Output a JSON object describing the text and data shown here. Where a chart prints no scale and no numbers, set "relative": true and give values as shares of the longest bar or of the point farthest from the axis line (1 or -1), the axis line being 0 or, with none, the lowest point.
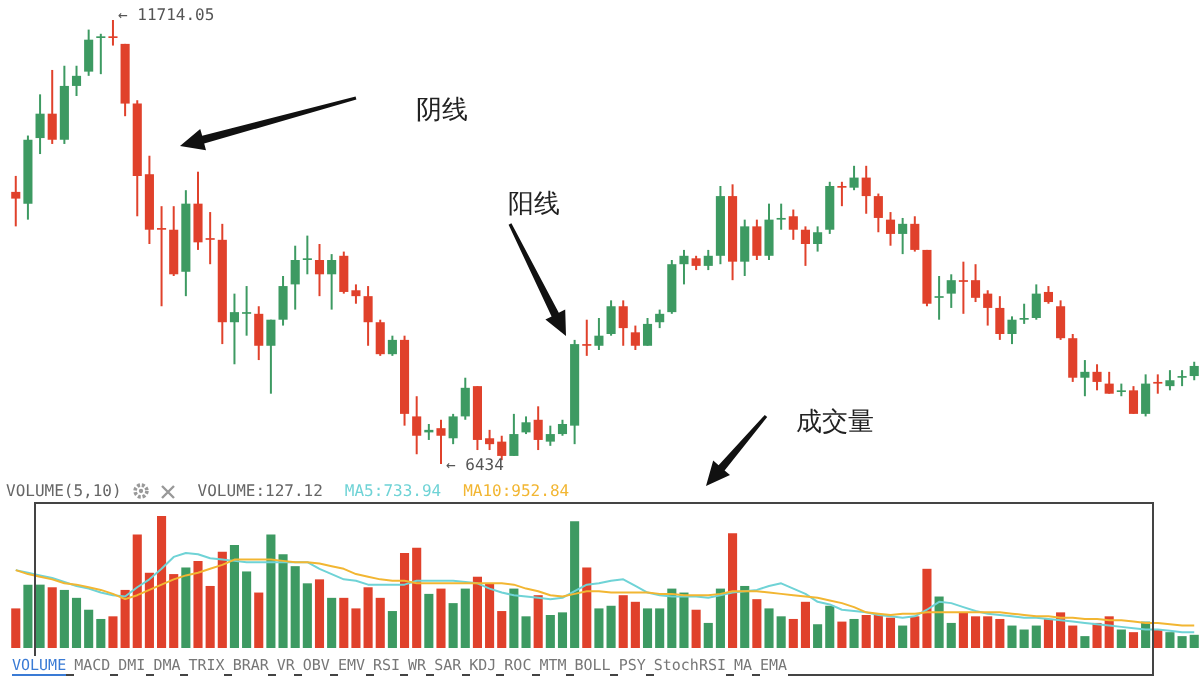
{
  "chart_data": [
    {
      "type": "candlestick",
      "tick_labels": false,
      "categories": [
        null,
        null,
        null,
        null,
        null,
        null,
        null,
        null,
        null,
        null,
        null,
        null,
        null,
        null,
        null,
        null,
        null,
        null,
        null,
        null,
        null,
        null,
        null,
        null,
        null,
        null,
        null,
        null,
        null,
        null,
        null,
        null,
        null,
        null,
        null,
        null,
        null,
        null,
        null,
        null,
        null,
        null,
        null,
        null,
        null,
        null,
        null,
        null,
        null,
        null,
        null,
        null,
        null,
        null,
        null,
        null,
        null,
        null,
        null,
        null,
        null,
        null,
        null,
        null,
        null,
        null,
        null,
        null,
        null,
        null,
        null,
        null,
        null,
        null,
        null,
        null,
        null,
        null,
        null,
        null,
        null,
        null,
        null,
        null,
        null,
        null,
        null,
        null,
        null,
        null,
        null,
        null,
        null,
        null,
        null,
        null,
        null,
        null
      ],
      "ohlc": [
        [
          9670,
          9860,
          9260,
          9590
        ],
        [
          9530,
          10340,
          9340,
          10290
        ],
        [
          10310,
          10830,
          10120,
          10600
        ],
        [
          10600,
          11120,
          10240,
          10290
        ],
        [
          10290,
          11170,
          10240,
          10930
        ],
        [
          10930,
          11170,
          10810,
          11050
        ],
        [
          11100,
          11600,
          11050,
          11480
        ],
        [
          11500,
          11550,
          11070,
          11520
        ],
        [
          11520,
          11714.05,
          11410,
          11500
        ],
        [
          11430,
          11430,
          10570,
          10720
        ],
        [
          10720,
          10760,
          9380,
          9860
        ],
        [
          9880,
          10100,
          9050,
          9220
        ],
        [
          9240,
          9500,
          8310,
          9220
        ],
        [
          9220,
          9500,
          8670,
          8690
        ],
        [
          8720,
          9690,
          8430,
          9530
        ],
        [
          9530,
          9910,
          8980,
          9070
        ],
        [
          9120,
          9430,
          8810,
          9100
        ],
        [
          9100,
          9290,
          7860,
          8120
        ],
        [
          8120,
          8460,
          7620,
          8240
        ],
        [
          8220,
          8550,
          7960,
          8240
        ],
        [
          8220,
          8310,
          7670,
          7840
        ],
        [
          7840,
          8150,
          7270,
          8150
        ],
        [
          8150,
          8670,
          8080,
          8550
        ],
        [
          8570,
          9030,
          8270,
          8860
        ],
        [
          8860,
          9150,
          8690,
          8880
        ],
        [
          8860,
          9050,
          8430,
          8690
        ],
        [
          8690,
          8930,
          8270,
          8860
        ],
        [
          8910,
          8960,
          8460,
          8480
        ],
        [
          8500,
          8570,
          8340,
          8430
        ],
        [
          8430,
          8550,
          7840,
          8120
        ],
        [
          8120,
          8150,
          7720,
          7740
        ],
        [
          7740,
          7960,
          7720,
          7910
        ],
        [
          7910,
          7960,
          6890,
          7030
        ],
        [
          7000,
          7240,
          6550,
          6770
        ],
        [
          6810,
          6910,
          6720,
          6840
        ],
        [
          6860,
          6960,
          6434,
          6770
        ],
        [
          6740,
          7030,
          6670,
          7000
        ],
        [
          7000,
          7460,
          6960,
          7340
        ],
        [
          7360,
          7360,
          6600,
          6720
        ],
        [
          6740,
          6840,
          6600,
          6670
        ],
        [
          6700,
          6770,
          6480,
          6530
        ],
        [
          6530,
          7030,
          6530,
          6790
        ],
        [
          6810,
          7000,
          6790,
          6930
        ],
        [
          6960,
          7120,
          6600,
          6720
        ],
        [
          6700,
          6890,
          6650,
          6790
        ],
        [
          6790,
          6960,
          6770,
          6910
        ],
        [
          6890,
          7910,
          6670,
          7860
        ],
        [
          7860,
          8150,
          7720,
          7840
        ],
        [
          7840,
          8170,
          7790,
          7960
        ],
        [
          7980,
          8380,
          7960,
          8310
        ],
        [
          8310,
          8380,
          7840,
          8050
        ],
        [
          8000,
          8080,
          7790,
          7840
        ],
        [
          7840,
          8170,
          7840,
          8100
        ],
        [
          8120,
          8270,
          8050,
          8220
        ],
        [
          8240,
          8860,
          8220,
          8810
        ],
        [
          8810,
          8980,
          8570,
          8910
        ],
        [
          8880,
          8910,
          8740,
          8790
        ],
        [
          8790,
          8980,
          8740,
          8910
        ],
        [
          8910,
          9740,
          8810,
          9620
        ],
        [
          9620,
          9760,
          8620,
          8840
        ],
        [
          8840,
          9340,
          8670,
          9260
        ],
        [
          9260,
          9340,
          8860,
          8910
        ],
        [
          8910,
          9530,
          8860,
          9340
        ],
        [
          9340,
          9530,
          9220,
          9360
        ],
        [
          9380,
          9460,
          9100,
          9220
        ],
        [
          9220,
          9260,
          8790,
          9050
        ],
        [
          9050,
          9260,
          8960,
          9190
        ],
        [
          9220,
          9790,
          9170,
          9740
        ],
        [
          9740,
          9790,
          9500,
          9720
        ],
        [
          9720,
          9980,
          9690,
          9840
        ],
        [
          9840,
          9980,
          9410,
          9620
        ],
        [
          9620,
          9650,
          9190,
          9360
        ],
        [
          9340,
          9430,
          9030,
          9170
        ],
        [
          9170,
          9360,
          8930,
          9290
        ],
        [
          9290,
          9380,
          8960,
          8980
        ],
        [
          8980,
          8980,
          8310,
          8340
        ],
        [
          8410,
          8670,
          8150,
          8430
        ],
        [
          8460,
          8690,
          8290,
          8620
        ],
        [
          8620,
          8840,
          8220,
          8600
        ],
        [
          8620,
          8810,
          8360,
          8410
        ],
        [
          8460,
          8500,
          8080,
          8290
        ],
        [
          8290,
          8430,
          7910,
          7980
        ],
        [
          7980,
          8190,
          7860,
          8150
        ],
        [
          8150,
          8340,
          8100,
          8170
        ],
        [
          8170,
          8570,
          8150,
          8460
        ],
        [
          8480,
          8550,
          8340,
          8360
        ],
        [
          8310,
          8380,
          7910,
          7930
        ],
        [
          7930,
          7980,
          7410,
          7460
        ],
        [
          7460,
          7670,
          7240,
          7530
        ],
        [
          7530,
          7620,
          7310,
          7410
        ],
        [
          7390,
          7530,
          7270,
          7270
        ],
        [
          7290,
          7390,
          7240,
          7310
        ],
        [
          7310,
          7360,
          7030,
          7030
        ],
        [
          7030,
          7500,
          7000,
          7390
        ],
        [
          7410,
          7500,
          7270,
          7390
        ],
        [
          7360,
          7550,
          7310,
          7430
        ],
        [
          7460,
          7550,
          7360,
          7480
        ],
        [
          7480,
          7650,
          7430,
          7600
        ]
      ],
      "colors": [
        "#e0412b",
        "#3d9a62",
        "#3d9a62",
        "#e0412b",
        "#3d9a62",
        "#3d9a62",
        "#3d9a62",
        "#3d9a62",
        "#e0412b",
        "#e0412b",
        "#e0412b",
        "#e0412b",
        "#e0412b",
        "#e0412b",
        "#3d9a62",
        "#e0412b",
        "#e0412b",
        "#e0412b",
        "#3d9a62",
        "#3d9a62",
        "#e0412b",
        "#3d9a62",
        "#3d9a62",
        "#3d9a62",
        "#3d9a62",
        "#e0412b",
        "#3d9a62",
        "#e0412b",
        "#e0412b",
        "#e0412b",
        "#e0412b",
        "#3d9a62",
        "#e0412b",
        "#e0412b",
        "#3d9a62",
        "#e0412b",
        "#3d9a62",
        "#3d9a62",
        "#e0412b",
        "#e0412b",
        "#e0412b",
        "#3d9a62",
        "#3d9a62",
        "#e0412b",
        "#3d9a62",
        "#3d9a62",
        "#3d9a62",
        "#e0412b",
        "#3d9a62",
        "#3d9a62",
        "#e0412b",
        "#e0412b",
        "#3d9a62",
        "#3d9a62",
        "#3d9a62",
        "#3d9a62",
        "#e0412b",
        "#3d9a62",
        "#3d9a62",
        "#e0412b",
        "#3d9a62",
        "#e0412b",
        "#3d9a62",
        "#3d9a62",
        "#e0412b",
        "#e0412b",
        "#3d9a62",
        "#3d9a62",
        "#e0412b",
        "#3d9a62",
        "#e0412b",
        "#e0412b",
        "#e0412b",
        "#3d9a62",
        "#e0412b",
        "#e0412b",
        "#3d9a62",
        "#3d9a62",
        "#e0412b",
        "#e0412b",
        "#e0412b",
        "#e0412b",
        "#3d9a62",
        "#3d9a62",
        "#3d9a62",
        "#e0412b",
        "#e0412b",
        "#e0412b",
        "#3d9a62",
        "#e0412b",
        "#e0412b",
        "#3d9a62",
        "#e0412b",
        "#3d9a62",
        "#e0412b",
        "#3d9a62",
        "#3d9a62",
        "#3d9a62"
      ],
      "annotations": [
        "← 11714.05",
        "← 6434",
        "阴线",
        "阳线",
        "成交量"
      ]
    },
    {
      "type": "bar",
      "relative": true,
      "tick_labels": false,
      "legend": "top left",
      "legend_title": "VOLUME(5,10)",
      "categories": [
        null,
        null,
        null,
        null,
        null,
        null,
        null,
        null,
        null,
        null,
        null,
        null,
        null,
        null,
        null,
        null,
        null,
        null,
        null,
        null,
        null,
        null,
        null,
        null,
        null,
        null,
        null,
        null,
        null,
        null,
        null,
        null,
        null,
        null,
        null,
        null,
        null,
        null,
        null,
        null,
        null,
        null,
        null,
        null,
        null,
        null,
        null,
        null,
        null,
        null,
        null,
        null,
        null,
        null,
        null,
        null,
        null,
        null,
        null,
        null,
        null,
        null,
        null,
        null,
        null,
        null,
        null,
        null,
        null,
        null,
        null,
        null,
        null,
        null,
        null,
        null,
        null,
        null,
        null,
        null,
        null,
        null,
        null,
        null,
        null,
        null,
        null,
        null,
        null,
        null,
        null,
        null,
        null,
        null,
        null,
        null,
        null,
        null
      ],
      "series": [
        {
          "name": "VOLUME:127.12",
          "values": [
            0.3,
            0.48,
            0.48,
            0.46,
            0.44,
            0.38,
            0.29,
            0.22,
            0.24,
            0.44,
            0.86,
            0.57,
            1,
            0.56,
            0.61,
            0.66,
            0.47,
            0.73,
            0.78,
            0.58,
            0.42,
            0.86,
            0.71,
            0.62,
            0.49,
            0.52,
            0.38,
            0.38,
            0.3,
            0.46,
            0.38,
            0.28,
            0.72,
            0.76,
            0.41,
            0.45,
            0.34,
            0.45,
            0.54,
            0.49,
            0.28,
            0.45,
            0.24,
            0.4,
            0.25,
            0.27,
            0.96,
            0.61,
            0.3,
            0.32,
            0.4,
            0.35,
            0.3,
            0.3,
            0.45,
            0.42,
            0.29,
            0.19,
            0.45,
            0.87,
            0.47,
            0.37,
            0.3,
            0.24,
            0.22,
            0.35,
            0.18,
            0.32,
            0.2,
            0.22,
            0.25,
            0.25,
            0.23,
            0.17,
            0.24,
            0.6,
            0.39,
            0.19,
            0.27,
            0.24,
            0.24,
            0.22,
            0.17,
            0.14,
            0.17,
            0.22,
            0.27,
            0.17,
            0.09,
            0.19,
            0.24,
            0.14,
            0.12,
            0.2,
            0.14,
            0.12,
            0.09,
            0.1
          ],
          "colors": [
            "#e0412b",
            "#3d9a62",
            "#3d9a62",
            "#e0412b",
            "#3d9a62",
            "#3d9a62",
            "#3d9a62",
            "#3d9a62",
            "#e0412b",
            "#e0412b",
            "#e0412b",
            "#e0412b",
            "#e0412b",
            "#e0412b",
            "#3d9a62",
            "#e0412b",
            "#e0412b",
            "#e0412b",
            "#3d9a62",
            "#3d9a62",
            "#e0412b",
            "#3d9a62",
            "#3d9a62",
            "#3d9a62",
            "#3d9a62",
            "#e0412b",
            "#3d9a62",
            "#e0412b",
            "#e0412b",
            "#e0412b",
            "#e0412b",
            "#3d9a62",
            "#e0412b",
            "#e0412b",
            "#3d9a62",
            "#e0412b",
            "#3d9a62",
            "#3d9a62",
            "#e0412b",
            "#e0412b",
            "#e0412b",
            "#3d9a62",
            "#3d9a62",
            "#e0412b",
            "#3d9a62",
            "#3d9a62",
            "#3d9a62",
            "#e0412b",
            "#3d9a62",
            "#3d9a62",
            "#e0412b",
            "#e0412b",
            "#3d9a62",
            "#3d9a62",
            "#3d9a62",
            "#3d9a62",
            "#e0412b",
            "#3d9a62",
            "#3d9a62",
            "#e0412b",
            "#3d9a62",
            "#e0412b",
            "#3d9a62",
            "#3d9a62",
            "#e0412b",
            "#e0412b",
            "#3d9a62",
            "#3d9a62",
            "#e0412b",
            "#3d9a62",
            "#e0412b",
            "#e0412b",
            "#e0412b",
            "#3d9a62",
            "#e0412b",
            "#e0412b",
            "#3d9a62",
            "#3d9a62",
            "#e0412b",
            "#e0412b",
            "#e0412b",
            "#e0412b",
            "#3d9a62",
            "#3d9a62",
            "#3d9a62",
            "#e0412b",
            "#e0412b",
            "#e0412b",
            "#3d9a62",
            "#e0412b",
            "#e0412b",
            "#3d9a62",
            "#e0412b",
            "#3d9a62",
            "#e0412b",
            "#3d9a62",
            "#3d9a62",
            "#3d9a62"
          ]
        },
        {
          "name": "MA5:733.94",
          "type": "line",
          "color": "#6fd3d6",
          "values": [
            0.59,
            0.57,
            0.55,
            0.53,
            0.5,
            0.47,
            0.45,
            0.42,
            0.4,
            0.39,
            0.46,
            0.52,
            0.6,
            0.69,
            0.72,
            0.71,
            0.68,
            0.67,
            0.66,
            0.65,
            0.65,
            0.65,
            0.65,
            0.65,
            0.65,
            0.6,
            0.56,
            0.52,
            0.51,
            0.48,
            0.48,
            0.48,
            0.48,
            0.51,
            0.51,
            0.51,
            0.51,
            0.5,
            0.49,
            0.45,
            0.42,
            0.4,
            0.39,
            0.38,
            0.37,
            0.38,
            0.43,
            0.48,
            0.49,
            0.51,
            0.52,
            0.47,
            0.42,
            0.4,
            0.39,
            0.39,
            0.39,
            0.38,
            0.4,
            0.42,
            0.43,
            0.44,
            0.47,
            0.49,
            0.45,
            0.41,
            0.35,
            0.33,
            0.29,
            0.28,
            0.27,
            0.25,
            0.24,
            0.23,
            0.24,
            0.29,
            0.35,
            0.34,
            0.31,
            0.28,
            0.26,
            0.25,
            0.24,
            0.23,
            0.23,
            0.22,
            0.21,
            0.2,
            0.19,
            0.18,
            0.17,
            0.16,
            0.15,
            0.14,
            0.14,
            0.13,
            0.12,
            0.12
          ]
        },
        {
          "name": "MA10:952.84",
          "type": "line",
          "color": "#f2b632",
          "values": [
            0.59,
            0.56,
            0.54,
            0.52,
            0.49,
            0.48,
            0.46,
            0.44,
            0.41,
            0.37,
            0.4,
            0.44,
            0.48,
            0.52,
            0.55,
            0.57,
            0.6,
            0.63,
            0.67,
            0.67,
            0.67,
            0.67,
            0.66,
            0.65,
            0.65,
            0.64,
            0.62,
            0.6,
            0.56,
            0.54,
            0.52,
            0.51,
            0.51,
            0.49,
            0.49,
            0.49,
            0.49,
            0.49,
            0.49,
            0.49,
            0.49,
            0.48,
            0.45,
            0.43,
            0.4,
            0.39,
            0.41,
            0.43,
            0.43,
            0.42,
            0.42,
            0.42,
            0.42,
            0.41,
            0.41,
            0.4,
            0.4,
            0.4,
            0.41,
            0.43,
            0.43,
            0.43,
            0.42,
            0.41,
            0.4,
            0.39,
            0.38,
            0.36,
            0.34,
            0.31,
            0.27,
            0.26,
            0.25,
            0.26,
            0.26,
            0.27,
            0.27,
            0.27,
            0.27,
            0.27,
            0.27,
            0.27,
            0.26,
            0.25,
            0.24,
            0.24,
            0.23,
            0.23,
            0.22,
            0.22,
            0.21,
            0.21,
            0.2,
            0.19,
            0.19,
            0.18,
            0.17,
            0.17
          ]
        }
      ],
      "annotations": [
        "VOLUME",
        "MACD",
        "DMI",
        "DMA",
        "TRIX",
        "BRAR",
        "VR",
        "OBV",
        "EMV",
        "RSI",
        "WR",
        "SAR",
        "KDJ",
        "ROC",
        "MTM",
        "BOLL",
        "PSY",
        "StochRSI",
        "MA",
        "EMA"
      ]
    }
  ]
}
